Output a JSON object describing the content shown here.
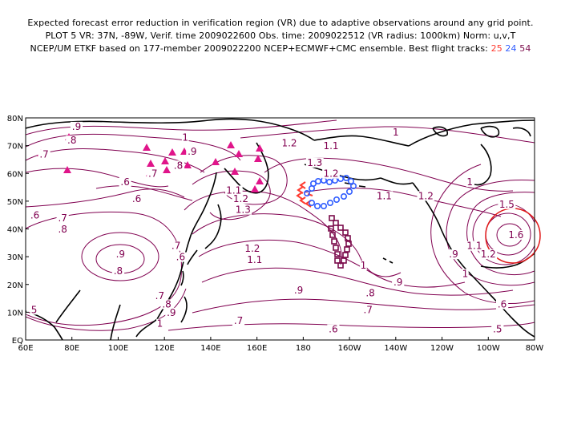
{
  "header": {
    "line1": "Expected forecast error reduction in verification region (VR) due to adaptive observations around any grid point.",
    "line2": "PLOT 5 VR: 37N, -89W, Verif. time 2009022600 Obs. time: 2009022512 (VR radius: 1000km) Norm: u,v,T",
    "line3": "NCEP/UM ETKF based on 177-member 2009022200 NCEP+ECMWF+CMC ensemble. Best flight tracks:",
    "tracks": [
      {
        "label": "25",
        "color": "#ff3b30"
      },
      {
        "label": "24",
        "color": "#2f5cff"
      },
      {
        "label": "54",
        "color": "#7a0a4a"
      }
    ]
  },
  "map": {
    "y_axis": [
      "80N",
      "70N",
      "60N",
      "50N",
      "40N",
      "30N",
      "20N",
      "10N",
      "EQ"
    ],
    "x_axis": [
      "60E",
      "80E",
      "100E",
      "120E",
      "140E",
      "160E",
      "180",
      "160W",
      "140W",
      "120W",
      "100W",
      "80W"
    ],
    "contour_color": "#800050",
    "contour_labels": [
      {
        "text": ".9",
        "lon": 82,
        "lat": 76
      },
      {
        "text": ".8",
        "lon": 80,
        "lat": 71
      },
      {
        "text": ".7",
        "lon": 68,
        "lat": 66
      },
      {
        "text": "1",
        "lon": 129,
        "lat": 72
      },
      {
        "text": ".9",
        "lon": 132,
        "lat": 67
      },
      {
        "text": ".8",
        "lon": 126,
        "lat": 62
      },
      {
        "text": ".7",
        "lon": 115,
        "lat": 59
      },
      {
        "text": ".6",
        "lon": 103,
        "lat": 56
      },
      {
        "text": ".6",
        "lon": 108,
        "lat": 50
      },
      {
        "text": ".6",
        "lon": 64,
        "lat": 44
      },
      {
        "text": ".7",
        "lon": 76,
        "lat": 43
      },
      {
        "text": ".8",
        "lon": 76,
        "lat": 39
      },
      {
        "text": ".9",
        "lon": 101,
        "lat": 30
      },
      {
        "text": ".8",
        "lon": 100,
        "lat": 24
      },
      {
        "text": ".7",
        "lon": 125,
        "lat": 33
      },
      {
        "text": ".6",
        "lon": 127,
        "lat": 29
      },
      {
        "text": ".7",
        "lon": 118,
        "lat": 15
      },
      {
        "text": ".8",
        "lon": 121,
        "lat": 12
      },
      {
        "text": ".9",
        "lon": 123,
        "lat": 9
      },
      {
        "text": ".5",
        "lon": 63,
        "lat": 10
      },
      {
        "text": "1",
        "lon": 118,
        "lat": 5
      },
      {
        "text": "1.1",
        "lon": 150,
        "lat": 53
      },
      {
        "text": "1.2",
        "lon": 153,
        "lat": 50
      },
      {
        "text": "1.3",
        "lon": 154,
        "lat": 46
      },
      {
        "text": "1.2",
        "lon": 174,
        "lat": 70
      },
      {
        "text": "1.1",
        "lon": 192,
        "lat": 69
      },
      {
        "text": "1",
        "lon": 220,
        "lat": 74
      },
      {
        "text": "1.3",
        "lon": 185,
        "lat": 63
      },
      {
        "text": "1.2",
        "lon": 192,
        "lat": 59
      },
      {
        "text": "1.1",
        "lon": 215,
        "lat": 51
      },
      {
        "text": "1.2",
        "lon": 233,
        "lat": 51
      },
      {
        "text": "1.2",
        "lon": 158,
        "lat": 32
      },
      {
        "text": "1.1",
        "lon": 159,
        "lat": 28
      },
      {
        "text": "1",
        "lon": 206,
        "lat": 26
      },
      {
        "text": ".9",
        "lon": 178,
        "lat": 17
      },
      {
        "text": ".9",
        "lon": 221,
        "lat": 20
      },
      {
        "text": ".8",
        "lon": 209,
        "lat": 16
      },
      {
        "text": ".7",
        "lon": 208,
        "lat": 10
      },
      {
        "text": ".7",
        "lon": 152,
        "lat": 6
      },
      {
        "text": ".6",
        "lon": 193,
        "lat": 3
      },
      {
        "text": ".9",
        "lon": 245,
        "lat": 30
      },
      {
        "text": "1",
        "lon": 250,
        "lat": 23
      },
      {
        "text": "1.1",
        "lon": 254,
        "lat": 33
      },
      {
        "text": "1.2",
        "lon": 260,
        "lat": 30
      },
      {
        "text": ".5",
        "lon": 264,
        "lat": 3
      },
      {
        "text": ".6",
        "lon": 266,
        "lat": 12
      },
      {
        "text": "1.5",
        "lon": 268,
        "lat": 48
      },
      {
        "text": "1",
        "lon": 252,
        "lat": 56
      },
      {
        "text": "1.6",
        "lon": 272,
        "lat": 37
      }
    ],
    "verification_region": {
      "lon": 271,
      "lat": 37,
      "radius_km": 1000,
      "color": "#e01a1a"
    }
  }
}
